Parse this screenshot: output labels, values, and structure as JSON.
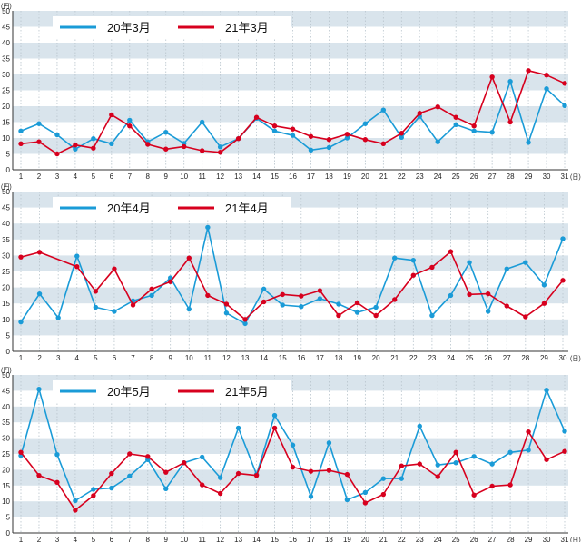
{
  "colors": {
    "series_2020": "#1a9bd7",
    "series_2021": "#d7001e",
    "band": "#d9e4ec",
    "grid_v": "#b8c4cc",
    "axis": "#333333"
  },
  "chart_data": [
    {
      "type": "line",
      "unit_label": "(円)",
      "xunit_label": "(日)",
      "ylim": [
        0,
        50
      ],
      "yticks": [
        "0",
        "5",
        "10",
        "15",
        "20",
        "25",
        "30",
        "35",
        "40",
        "45",
        "50"
      ],
      "x": [
        "1",
        "2",
        "3",
        "4",
        "5",
        "6",
        "7",
        "8",
        "9",
        "10",
        "11",
        "12",
        "13",
        "14",
        "15",
        "16",
        "17",
        "18",
        "19",
        "20",
        "21",
        "22",
        "23",
        "24",
        "25",
        "26",
        "27",
        "28",
        "29",
        "30",
        "31"
      ],
      "legend_position": "top-left",
      "series": [
        {
          "name": "20年3月",
          "values": [
            12.2,
            14.5,
            11,
            6.5,
            9.8,
            8.2,
            15.6,
            8.8,
            11.8,
            8.3,
            15,
            7.2,
            9.8,
            16.2,
            12.2,
            10.8,
            6.2,
            7,
            10,
            14.5,
            18.8,
            10.2,
            16.8,
            8.8,
            14.2,
            12.2,
            11.8,
            27.8,
            8.6,
            25.5,
            20.2
          ]
        },
        {
          "name": "21年3月",
          "values": [
            8.2,
            8.8,
            5,
            7.8,
            6.8,
            17.3,
            13.8,
            8,
            6.5,
            7.3,
            6,
            5.5,
            9.8,
            16.5,
            13.8,
            12.8,
            10.5,
            9.5,
            11.2,
            9.5,
            8.2,
            11.5,
            17.8,
            19.8,
            16.5,
            13.8,
            29.2,
            15,
            31.2,
            29.8,
            27.2
          ]
        }
      ]
    },
    {
      "type": "line",
      "unit_label": "(円)",
      "xunit_label": "(日)",
      "ylim": [
        0,
        50
      ],
      "yticks": [
        "0",
        "5",
        "10",
        "15",
        "20",
        "25",
        "30",
        "35",
        "40",
        "45",
        "50"
      ],
      "x": [
        "1",
        "2",
        "3",
        "4",
        "5",
        "6",
        "7",
        "8",
        "9",
        "10",
        "11",
        "12",
        "13",
        "14",
        "15",
        "16",
        "17",
        "18",
        "19",
        "20",
        "21",
        "22",
        "23",
        "24",
        "25",
        "26",
        "27",
        "28",
        "29",
        "30"
      ],
      "legend_position": "top-left",
      "series": [
        {
          "name": "20年4月",
          "values": [
            9.2,
            18,
            10.5,
            29.8,
            13.8,
            12.5,
            15.8,
            17.5,
            23,
            13.2,
            38.8,
            12,
            8.7,
            19.5,
            14.5,
            14,
            16.5,
            14.8,
            12.2,
            13.8,
            29.2,
            28.5,
            11.2,
            17.5,
            27.8,
            12.5,
            25.8,
            27.8,
            20.8,
            35.2
          ]
        },
        {
          "name": "21年4月",
          "values": [
            29.5,
            31,
            null,
            26.5,
            18.8,
            25.8,
            14.5,
            19.5,
            21.8,
            29.2,
            17.5,
            14.8,
            10,
            15.5,
            17.8,
            17.3,
            19,
            11.2,
            15.2,
            11.2,
            16.2,
            23.8,
            26.3,
            31.2,
            17.8,
            18,
            14.2,
            10.8,
            15,
            22.2
          ]
        }
      ]
    },
    {
      "type": "line",
      "unit_label": "(円)",
      "xunit_label": "(日)",
      "ylim": [
        0,
        50
      ],
      "yticks": [
        "0",
        "5",
        "10",
        "15",
        "20",
        "25",
        "30",
        "35",
        "40",
        "45",
        "50"
      ],
      "x": [
        "1",
        "2",
        "3",
        "4",
        "5",
        "6",
        "7",
        "8",
        "9",
        "10",
        "11",
        "12",
        "13",
        "14",
        "15",
        "16",
        "17",
        "18",
        "19",
        "20",
        "21",
        "22",
        "23",
        "24",
        "25",
        "26",
        "27",
        "28",
        "29",
        "30",
        "31"
      ],
      "legend_position": "top-left",
      "series": [
        {
          "name": "20年5月",
          "values": [
            24.5,
            45.5,
            24.8,
            10.2,
            13.8,
            14.2,
            18,
            23.2,
            14,
            22.2,
            24,
            17.5,
            33.2,
            18.5,
            37.2,
            27.8,
            11.5,
            28.5,
            10.5,
            12.8,
            17.2,
            17.2,
            33.8,
            21.5,
            22.2,
            24.2,
            21.8,
            25.5,
            26.2,
            45.2,
            32.2
          ]
        },
        {
          "name": "21年5月",
          "values": [
            25.5,
            18.2,
            16,
            7.2,
            11.8,
            18.8,
            25,
            24.2,
            19.2,
            22.2,
            15.2,
            12.5,
            18.8,
            18.2,
            33.2,
            20.8,
            19.5,
            19.8,
            18.5,
            9.5,
            12.2,
            21.2,
            21.8,
            17.8,
            25.5,
            12,
            14.8,
            15.2,
            32,
            23.2,
            25.8
          ]
        }
      ]
    }
  ]
}
